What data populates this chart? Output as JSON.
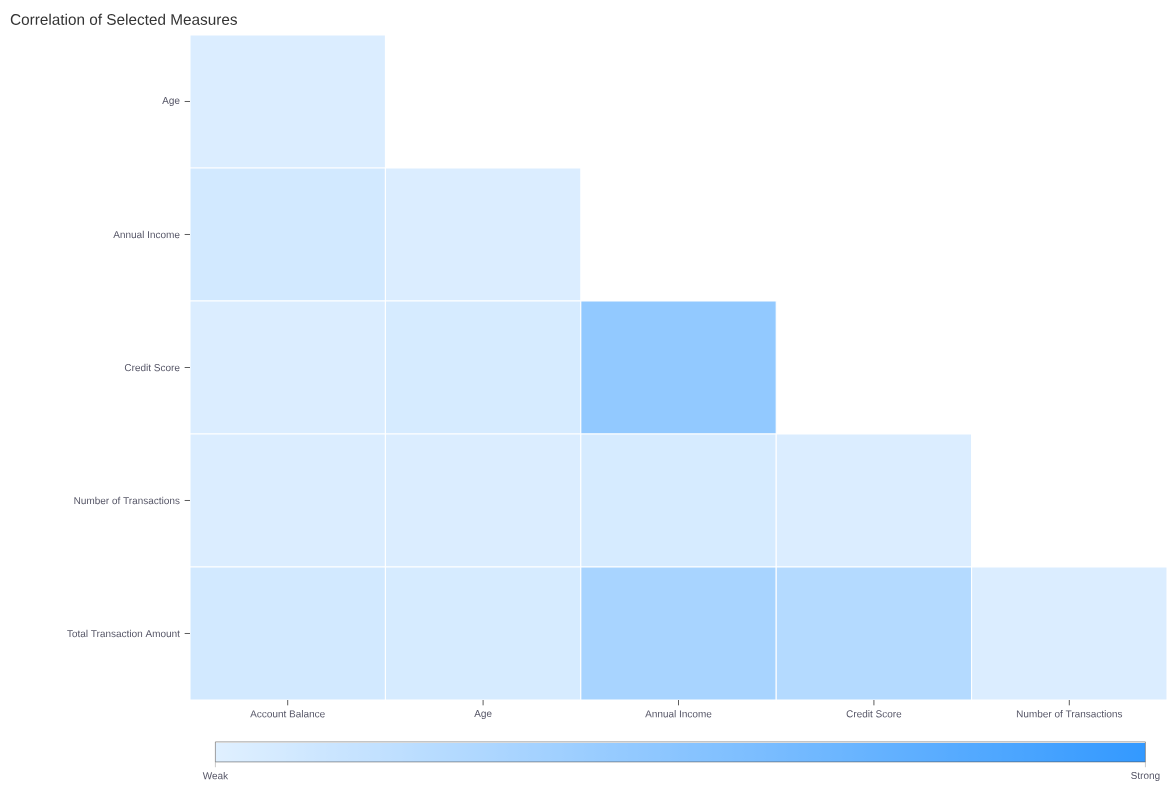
{
  "chart_data": {
    "type": "heatmap",
    "title": "Correlation of Selected Measures",
    "categories": [
      "Account Balance",
      "Age",
      "Annual Income",
      "Credit Score",
      "Number of Transactions"
    ],
    "y_categories": [
      "Age",
      "Annual Income",
      "Credit Score",
      "Number of Transactions",
      "Total Transaction Amount"
    ],
    "cells": [
      [
        0.03,
        null,
        null,
        null,
        null
      ],
      [
        0.08,
        0.03,
        null,
        null,
        null
      ],
      [
        0.03,
        0.06,
        0.45,
        null,
        null
      ],
      [
        0.03,
        0.03,
        0.06,
        0.03,
        null
      ],
      [
        0.08,
        0.06,
        0.32,
        0.25,
        0.03
      ]
    ],
    "clim": [
      0,
      1
    ],
    "cticks": [
      {
        "value": 0,
        "label": "Weak"
      },
      {
        "value": 1,
        "label": "Strong"
      }
    ]
  }
}
